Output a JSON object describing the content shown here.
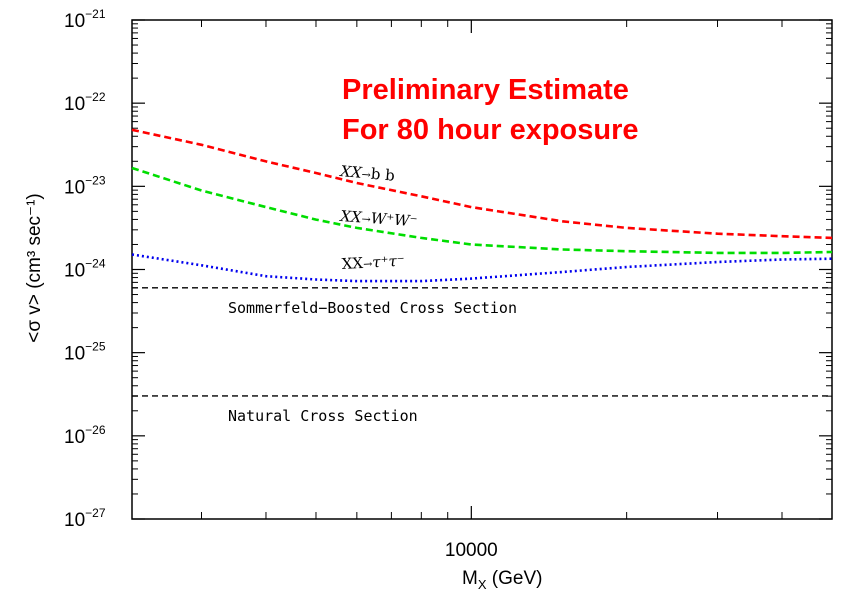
{
  "chart_data": {
    "type": "line",
    "title": "",
    "xlabel": "M",
    "xlabel_sub": "X",
    "xlabel_unit": " (GeV)",
    "ylabel": "<σ v> (cm³ sec⁻¹)",
    "x_scale": "log",
    "y_scale": "log",
    "xlim": [
      2200,
      50000
    ],
    "ylim_exp": [
      -27,
      -21
    ],
    "x_major_ticks": [
      {
        "value": 10000,
        "label": "10000"
      }
    ],
    "x_minor_ticks": [
      3000,
      4000,
      5000,
      6000,
      7000,
      8000,
      9000,
      20000,
      30000,
      40000
    ],
    "y_major_ticks": [
      {
        "exp": -27,
        "label": "10",
        "sup": "−27"
      },
      {
        "exp": -26,
        "label": "10",
        "sup": "−26"
      },
      {
        "exp": -25,
        "label": "10",
        "sup": "−25"
      },
      {
        "exp": -24,
        "label": "10",
        "sup": "−24"
      },
      {
        "exp": -23,
        "label": "10",
        "sup": "−23"
      },
      {
        "exp": -22,
        "label": "10",
        "sup": "−22"
      },
      {
        "exp": -21,
        "label": "10",
        "sup": "−21"
      }
    ],
    "series": [
      {
        "name": "XX→b b",
        "label_parts": [
          "XX",
          "→",
          "b  b"
        ],
        "color": "#ff0000",
        "style": "dashed",
        "x": [
          2200,
          3000,
          4000,
          5000,
          6000,
          8000,
          10000,
          15000,
          20000,
          30000,
          40000,
          50000
        ],
        "log10_y": [
          -22.32,
          -22.5,
          -22.7,
          -22.84,
          -22.96,
          -23.12,
          -23.25,
          -23.42,
          -23.5,
          -23.57,
          -23.6,
          -23.62
        ]
      },
      {
        "name": "XX→W⁺W⁻",
        "label_parts": [
          "XX",
          "→",
          "W⁺W⁻"
        ],
        "color": "#00dd00",
        "style": "dashed",
        "x": [
          2200,
          3000,
          4000,
          5000,
          6000,
          8000,
          10000,
          15000,
          20000,
          30000,
          40000,
          50000
        ],
        "log10_y": [
          -22.78,
          -23.05,
          -23.25,
          -23.4,
          -23.5,
          -23.62,
          -23.7,
          -23.76,
          -23.78,
          -23.8,
          -23.8,
          -23.79
        ]
      },
      {
        "name": "XX→τ⁺τ⁻",
        "label_parts": [
          "XX",
          "→",
          "τ⁺τ⁻"
        ],
        "color": "#0000ee",
        "style": "dotted",
        "x": [
          2200,
          3000,
          4000,
          5000,
          6000,
          8000,
          10000,
          15000,
          20000,
          30000,
          40000,
          50000
        ],
        "log10_y": [
          -23.82,
          -23.95,
          -24.08,
          -24.12,
          -24.14,
          -24.14,
          -24.11,
          -24.03,
          -23.97,
          -23.91,
          -23.88,
          -23.87
        ]
      }
    ],
    "reference_lines": [
      {
        "name": "Sommerfeld-Boosted Cross Section",
        "label": "Sommerfeld−Boosted Cross Section",
        "log10_y": -24.22
      },
      {
        "name": "Natural Cross Section",
        "label": "Natural Cross Section",
        "log10_y": -25.52
      }
    ],
    "annotation": {
      "line1": "Preliminary Estimate",
      "line2": "For 80 hour exposure",
      "color": "#ff0000"
    }
  }
}
